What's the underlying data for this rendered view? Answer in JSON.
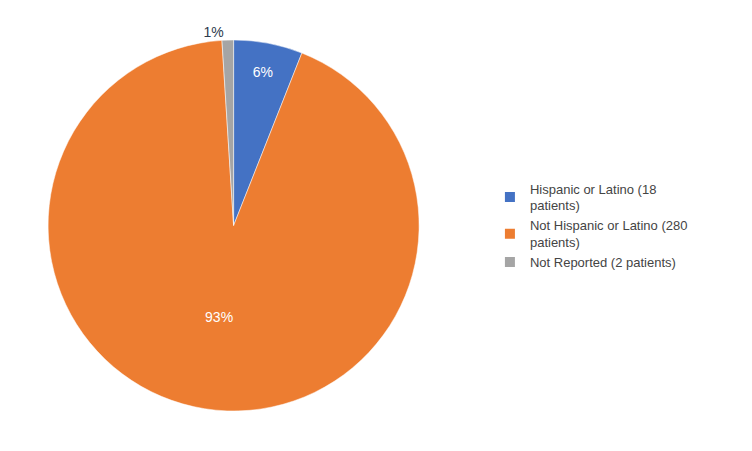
{
  "chart_data": {
    "type": "pie",
    "categories": [
      "Hispanic or Latino (18\npatients)",
      "Not Hispanic or Latino (280\npatients)",
      "Not Reported (2 patients)"
    ],
    "values": [
      6,
      93,
      1
    ],
    "value_labels": [
      "6%",
      "93%",
      "1%"
    ],
    "colors": [
      "#4472C4",
      "#ED7D31",
      "#A5A5A5"
    ],
    "data_labels": true,
    "legend": "right"
  }
}
